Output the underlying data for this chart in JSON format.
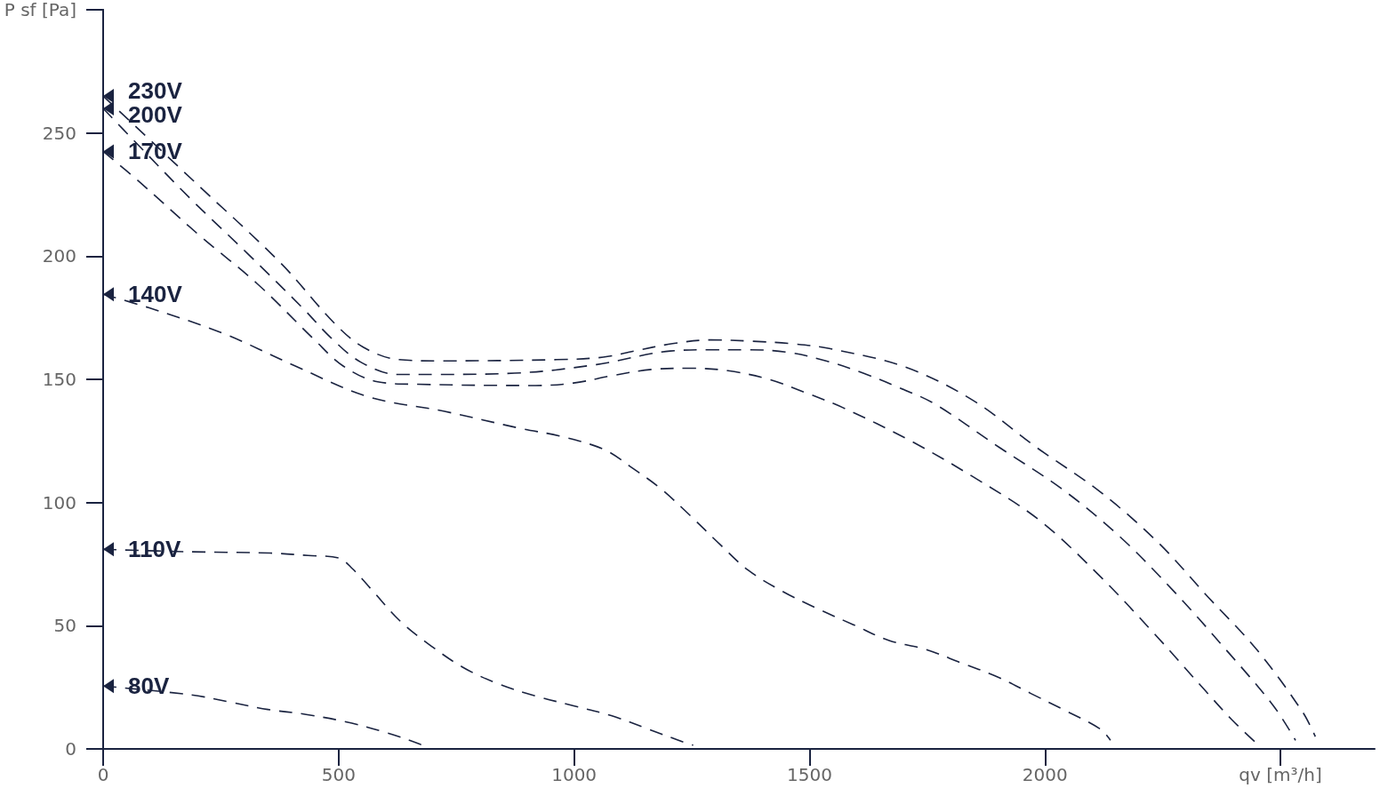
{
  "chart_data": {
    "type": "line",
    "xlim": [
      0,
      2700
    ],
    "ylim": [
      0,
      300
    ],
    "xticks": [
      0,
      500,
      1000,
      1500,
      2000,
      {
        "value": 2500,
        "label": "qv [m³/h]"
      }
    ],
    "yticks": [
      0,
      50,
      100,
      150,
      200,
      250,
      {
        "value": 300,
        "label": "P sf [Pa]"
      }
    ],
    "line_style": "dashed",
    "series": [
      {
        "name": "230V",
        "color": "#1a2340",
        "x": [
          0,
          195,
          378,
          490,
          553,
          628,
          713,
          963,
          1062,
          1128,
          1209,
          1291,
          1376,
          1459,
          1542,
          1703,
          1847,
          1981,
          2116,
          2239,
          2347,
          2451,
          2547,
          2574
        ],
        "values": [
          265,
          230,
          197,
          173,
          163,
          158,
          157.5,
          158,
          159,
          161.5,
          164.5,
          166,
          165.5,
          164.5,
          162.5,
          155,
          141.5,
          122.5,
          104.5,
          84,
          61.5,
          40,
          15,
          5
        ]
      },
      {
        "name": "200V",
        "color": "#1a2340",
        "x": [
          0,
          70,
          187,
          307,
          426,
          483,
          547,
          625,
          710,
          874,
          1048,
          1204,
          1287,
          1370,
          1453,
          1535,
          1614,
          1692,
          1766,
          1902,
          2036,
          2157,
          2271,
          2381,
          2485,
          2532
        ],
        "values": [
          260,
          246,
          223,
          201,
          178.5,
          167,
          157,
          152,
          152,
          152.5,
          156,
          161.5,
          162,
          162,
          161,
          157.5,
          152.5,
          146.5,
          140,
          122.5,
          105.5,
          86.5,
          64.5,
          41,
          17.5,
          3.5
        ]
      },
      {
        "name": "170V",
        "color": "#1a2340",
        "x": [
          0,
          78,
          201,
          329,
          449,
          509,
          583,
          668,
          918,
          999,
          1081,
          1164,
          1247,
          1327,
          1414,
          1493,
          1571,
          1715,
          1851,
          1987,
          2112,
          2231,
          2341,
          2396,
          2445
        ],
        "values": [
          242.5,
          230,
          209,
          188.5,
          166,
          155.5,
          149,
          148,
          147.5,
          148.5,
          151.5,
          154,
          154.5,
          153.5,
          150,
          144.5,
          138.5,
          125,
          110,
          93,
          71,
          47,
          23.5,
          12,
          3
        ]
      },
      {
        "name": "140V",
        "color": "#1a2340",
        "x": [
          0,
          98,
          257,
          407,
          562,
          725,
          888,
          969,
          1064,
          1124,
          1185,
          1245,
          1310,
          1370,
          1442,
          1516,
          1592,
          1669,
          1745,
          1821,
          1896,
          1970,
          2044,
          2118,
          2139
        ],
        "values": [
          184.5,
          179,
          168.5,
          155.5,
          143,
          137,
          130,
          127,
          121.5,
          114,
          105.5,
          95,
          83,
          72.5,
          64,
          57,
          50.5,
          44,
          40.5,
          35,
          29.5,
          22.5,
          15.5,
          8,
          3.5
        ]
      },
      {
        "name": "110V",
        "color": "#1a2340",
        "x": [
          0,
          187,
          354,
          435,
          500,
          530,
          573,
          630,
          695,
          765,
          838,
          918,
          999,
          1079,
          1158,
          1236,
          1253
        ],
        "values": [
          81,
          80,
          79.5,
          78.5,
          77.5,
          73,
          64,
          52,
          42,
          33,
          26.5,
          21.5,
          17.5,
          13.5,
          8,
          2.5,
          1.5
        ]
      },
      {
        "name": "80V",
        "color": "#1a2340",
        "x": [
          0,
          185,
          269,
          350,
          431,
          515,
          594,
          672,
          687
        ],
        "values": [
          25.5,
          22,
          19,
          16,
          14,
          11,
          7,
          2,
          0
        ]
      }
    ]
  }
}
